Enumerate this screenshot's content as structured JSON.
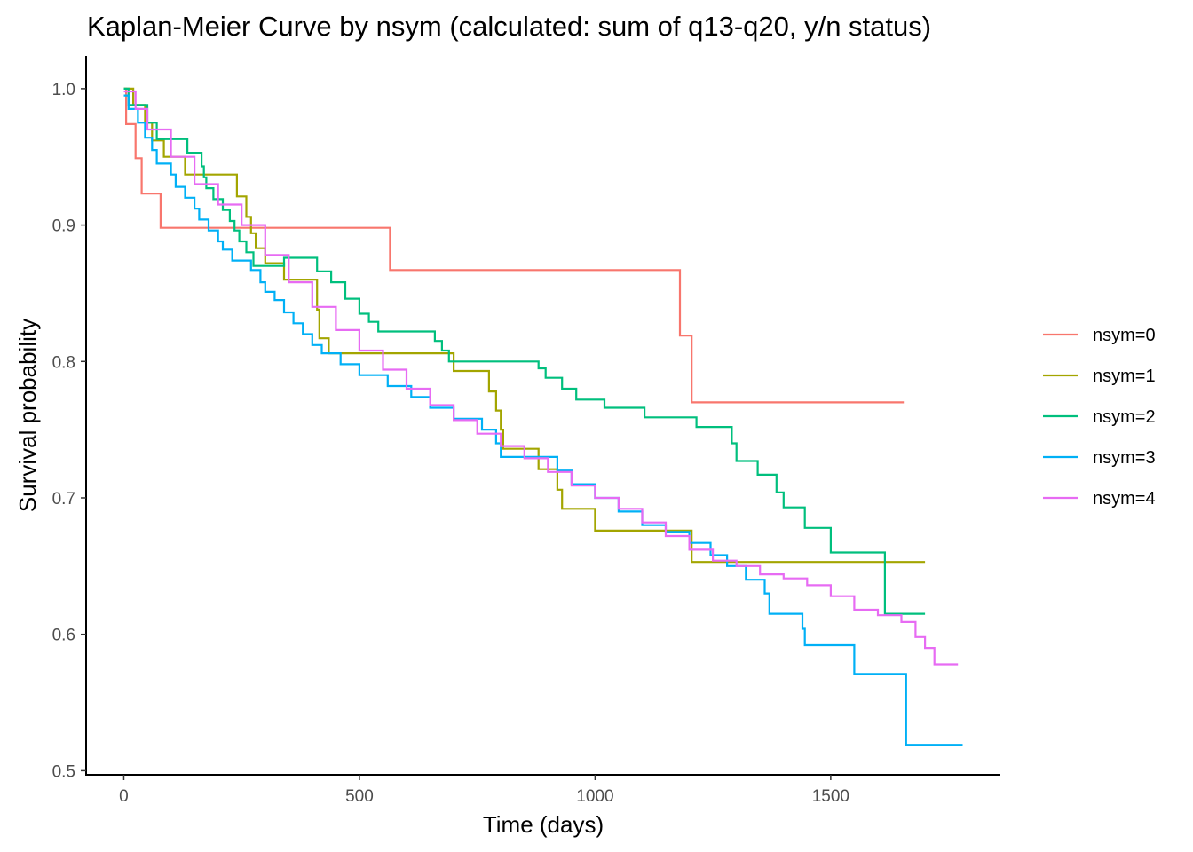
{
  "chart_data": {
    "type": "line",
    "step": true,
    "title": "Kaplan-Meier Curve by nsym (calculated: sum of q13-q20, y/n status)",
    "xlabel": "Time (days)",
    "ylabel": "Survival probability",
    "xlim": [
      -80,
      1860
    ],
    "ylim": [
      0.497,
      1.024
    ],
    "xticks": [
      0,
      500,
      1000,
      1500
    ],
    "xtick_labels": [
      "0",
      "500",
      "1000",
      "1500"
    ],
    "yticks": [
      0.5,
      0.6,
      0.7,
      0.8,
      0.9,
      1.0
    ],
    "ytick_labels": [
      "0.5",
      "0.6",
      "0.7",
      "0.8",
      "0.9",
      "1.0"
    ],
    "grid": false,
    "legend_position": "right",
    "series": [
      {
        "name": "nsym=0",
        "color": "#F8766D",
        "points": [
          [
            0,
            1.0
          ],
          [
            5,
            0.974
          ],
          [
            25,
            0.949
          ],
          [
            38,
            0.923
          ],
          [
            78,
            0.898
          ],
          [
            565,
            0.867
          ],
          [
            1180,
            0.819
          ],
          [
            1205,
            0.77
          ],
          [
            1655,
            0.77
          ]
        ]
      },
      {
        "name": "nsym=1",
        "color": "#A3A500",
        "points": [
          [
            0,
            1.0
          ],
          [
            20,
            0.988
          ],
          [
            45,
            0.975
          ],
          [
            60,
            0.962
          ],
          [
            85,
            0.95
          ],
          [
            130,
            0.937
          ],
          [
            240,
            0.921
          ],
          [
            260,
            0.906
          ],
          [
            270,
            0.894
          ],
          [
            280,
            0.883
          ],
          [
            300,
            0.872
          ],
          [
            340,
            0.86
          ],
          [
            410,
            0.838
          ],
          [
            415,
            0.817
          ],
          [
            435,
            0.806
          ],
          [
            560,
            0.806
          ],
          [
            670,
            0.806
          ],
          [
            700,
            0.793
          ],
          [
            775,
            0.778
          ],
          [
            790,
            0.764
          ],
          [
            800,
            0.75
          ],
          [
            805,
            0.736
          ],
          [
            880,
            0.721
          ],
          [
            920,
            0.706
          ],
          [
            930,
            0.692
          ],
          [
            1000,
            0.676
          ],
          [
            1180,
            0.676
          ],
          [
            1205,
            0.653
          ],
          [
            1700,
            0.653
          ]
        ]
      },
      {
        "name": "nsym=2",
        "color": "#00BF7D",
        "points": [
          [
            0,
            1.0
          ],
          [
            10,
            0.988
          ],
          [
            50,
            0.975
          ],
          [
            70,
            0.963
          ],
          [
            135,
            0.953
          ],
          [
            165,
            0.943
          ],
          [
            170,
            0.935
          ],
          [
            175,
            0.927
          ],
          [
            190,
            0.919
          ],
          [
            210,
            0.911
          ],
          [
            225,
            0.903
          ],
          [
            235,
            0.896
          ],
          [
            245,
            0.888
          ],
          [
            260,
            0.88
          ],
          [
            275,
            0.87
          ],
          [
            340,
            0.876
          ],
          [
            410,
            0.866
          ],
          [
            440,
            0.858
          ],
          [
            470,
            0.846
          ],
          [
            500,
            0.835
          ],
          [
            520,
            0.829
          ],
          [
            540,
            0.822
          ],
          [
            660,
            0.815
          ],
          [
            675,
            0.808
          ],
          [
            690,
            0.8
          ],
          [
            880,
            0.795
          ],
          [
            895,
            0.788
          ],
          [
            930,
            0.78
          ],
          [
            960,
            0.772
          ],
          [
            1020,
            0.766
          ],
          [
            1105,
            0.759
          ],
          [
            1215,
            0.752
          ],
          [
            1290,
            0.74
          ],
          [
            1300,
            0.727
          ],
          [
            1345,
            0.717
          ],
          [
            1385,
            0.704
          ],
          [
            1400,
            0.693
          ],
          [
            1445,
            0.678
          ],
          [
            1500,
            0.66
          ],
          [
            1615,
            0.615
          ],
          [
            1700,
            0.615
          ]
        ]
      },
      {
        "name": "nsym=3",
        "color": "#00B0F6",
        "points": [
          [
            0,
            0.995
          ],
          [
            10,
            0.985
          ],
          [
            30,
            0.975
          ],
          [
            45,
            0.964
          ],
          [
            60,
            0.955
          ],
          [
            70,
            0.945
          ],
          [
            100,
            0.937
          ],
          [
            110,
            0.928
          ],
          [
            130,
            0.92
          ],
          [
            150,
            0.912
          ],
          [
            160,
            0.904
          ],
          [
            180,
            0.896
          ],
          [
            200,
            0.888
          ],
          [
            210,
            0.882
          ],
          [
            230,
            0.874
          ],
          [
            270,
            0.867
          ],
          [
            290,
            0.858
          ],
          [
            300,
            0.851
          ],
          [
            320,
            0.845
          ],
          [
            340,
            0.836
          ],
          [
            360,
            0.828
          ],
          [
            380,
            0.82
          ],
          [
            400,
            0.812
          ],
          [
            420,
            0.806
          ],
          [
            460,
            0.798
          ],
          [
            500,
            0.79
          ],
          [
            560,
            0.782
          ],
          [
            610,
            0.774
          ],
          [
            650,
            0.766
          ],
          [
            700,
            0.758
          ],
          [
            760,
            0.75
          ],
          [
            790,
            0.74
          ],
          [
            800,
            0.73
          ],
          [
            920,
            0.72
          ],
          [
            950,
            0.71
          ],
          [
            1000,
            0.7
          ],
          [
            1050,
            0.69
          ],
          [
            1100,
            0.68
          ],
          [
            1150,
            0.675
          ],
          [
            1200,
            0.667
          ],
          [
            1245,
            0.658
          ],
          [
            1280,
            0.65
          ],
          [
            1320,
            0.64
          ],
          [
            1360,
            0.63
          ],
          [
            1370,
            0.615
          ],
          [
            1440,
            0.604
          ],
          [
            1445,
            0.592
          ],
          [
            1550,
            0.571
          ],
          [
            1660,
            0.519
          ],
          [
            1780,
            0.519
          ]
        ]
      },
      {
        "name": "nsym=4",
        "color": "#E76BF3",
        "points": [
          [
            0,
            0.998
          ],
          [
            25,
            0.985
          ],
          [
            50,
            0.97
          ],
          [
            100,
            0.95
          ],
          [
            150,
            0.93
          ],
          [
            200,
            0.915
          ],
          [
            250,
            0.9
          ],
          [
            300,
            0.878
          ],
          [
            350,
            0.858
          ],
          [
            400,
            0.84
          ],
          [
            450,
            0.823
          ],
          [
            500,
            0.808
          ],
          [
            550,
            0.794
          ],
          [
            600,
            0.78
          ],
          [
            650,
            0.768
          ],
          [
            700,
            0.757
          ],
          [
            750,
            0.747
          ],
          [
            800,
            0.738
          ],
          [
            850,
            0.729
          ],
          [
            900,
            0.719
          ],
          [
            950,
            0.709
          ],
          [
            1000,
            0.7
          ],
          [
            1050,
            0.692
          ],
          [
            1100,
            0.682
          ],
          [
            1150,
            0.672
          ],
          [
            1200,
            0.662
          ],
          [
            1250,
            0.654
          ],
          [
            1300,
            0.65
          ],
          [
            1350,
            0.644
          ],
          [
            1400,
            0.641
          ],
          [
            1450,
            0.636
          ],
          [
            1500,
            0.628
          ],
          [
            1550,
            0.618
          ],
          [
            1600,
            0.614
          ],
          [
            1650,
            0.609
          ],
          [
            1680,
            0.598
          ],
          [
            1700,
            0.59
          ],
          [
            1720,
            0.578
          ],
          [
            1770,
            0.578
          ]
        ]
      }
    ]
  }
}
